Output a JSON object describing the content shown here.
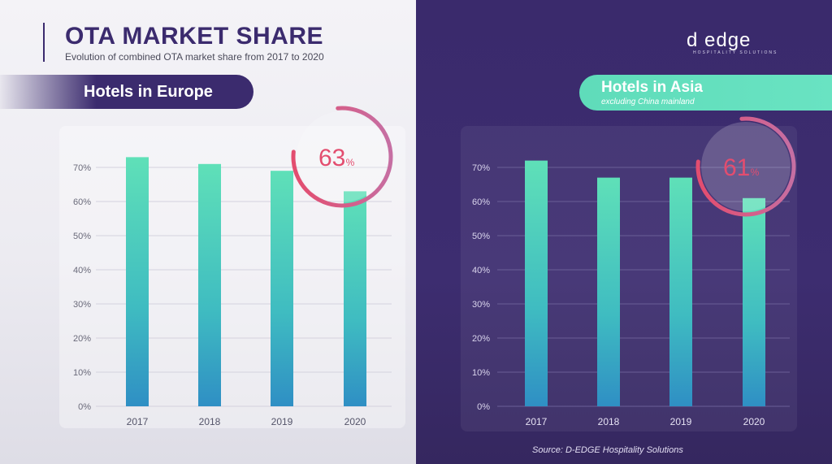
{
  "title": "OTA MARKET SHARE",
  "subtitle": "Evolution of combined OTA market share from 2017 to 2020",
  "logo": {
    "text": "d  edge",
    "tagline": "HOSPITALITY SOLUTIONS"
  },
  "source": "Source: D-EDGE Hospitality Solutions",
  "colors": {
    "bar_top": "#5fe0b8",
    "bar_bottom": "#2f8fc4",
    "ring": "#e34d6f",
    "brand_purple": "#3b2b6e",
    "pill_teal": "#64e0bf"
  },
  "chart_data": [
    {
      "type": "bar",
      "title": "Hotels in Europe",
      "subtitle": "",
      "categories": [
        "2017",
        "2018",
        "2019",
        "2020"
      ],
      "values": [
        73,
        71,
        69,
        63
      ],
      "ylim": [
        0,
        70
      ],
      "yticks": [
        "0%",
        "10%",
        "20%",
        "30%",
        "40%",
        "50%",
        "60%",
        "70%"
      ],
      "highlight": {
        "value": "63",
        "unit": "%"
      },
      "grid": true
    },
    {
      "type": "bar",
      "title": "Hotels in Asia",
      "subtitle": "excluding China mainland",
      "categories": [
        "2017",
        "2018",
        "2019",
        "2020"
      ],
      "values": [
        72,
        67,
        67,
        61
      ],
      "ylim": [
        0,
        70
      ],
      "yticks": [
        "0%",
        "10%",
        "20%",
        "30%",
        "40%",
        "50%",
        "60%",
        "70%"
      ],
      "highlight": {
        "value": "61",
        "unit": "%"
      },
      "grid": true
    }
  ]
}
